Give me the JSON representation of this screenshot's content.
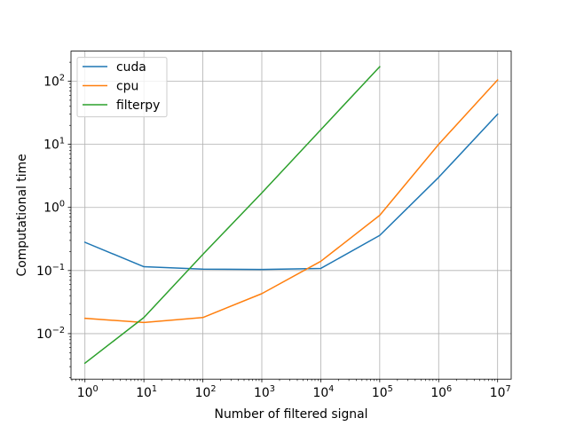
{
  "chart_data": {
    "type": "line",
    "xscale": "log",
    "yscale": "log",
    "xlabel": "Number of filtered signal",
    "ylabel": "Computational time",
    "x_ticks": [
      {
        "value": 1,
        "base": "10",
        "exp": "0"
      },
      {
        "value": 10,
        "base": "10",
        "exp": "1"
      },
      {
        "value": 100,
        "base": "10",
        "exp": "2"
      },
      {
        "value": 1000,
        "base": "10",
        "exp": "3"
      },
      {
        "value": 10000,
        "base": "10",
        "exp": "4"
      },
      {
        "value": 100000,
        "base": "10",
        "exp": "5"
      },
      {
        "value": 1000000,
        "base": "10",
        "exp": "6"
      },
      {
        "value": 10000000,
        "base": "10",
        "exp": "7"
      }
    ],
    "y_ticks": [
      {
        "value": 0.01,
        "base": "10",
        "exp": "−2"
      },
      {
        "value": 0.1,
        "base": "10",
        "exp": "−1"
      },
      {
        "value": 1,
        "base": "10",
        "exp": "0"
      },
      {
        "value": 10,
        "base": "10",
        "exp": "1"
      },
      {
        "value": 100,
        "base": "10",
        "exp": "2"
      }
    ],
    "xlim": [
      0.58,
      17000000
    ],
    "ylim": [
      0.0019,
      300
    ],
    "grid": true,
    "legend_position": "upper-left",
    "series": [
      {
        "name": "cuda",
        "color": "#1f77b4",
        "x": [
          1,
          10,
          100,
          1000,
          10000,
          100000,
          1000000,
          10000000
        ],
        "y": [
          0.28,
          0.115,
          0.105,
          0.104,
          0.108,
          0.36,
          3.0,
          30
        ]
      },
      {
        "name": "cpu",
        "color": "#ff7f0e",
        "x": [
          1,
          10,
          100,
          1000,
          10000,
          100000,
          1000000,
          10000000
        ],
        "y": [
          0.0175,
          0.015,
          0.018,
          0.043,
          0.14,
          0.75,
          10,
          105
        ]
      },
      {
        "name": "filterpy",
        "color": "#2ca02c",
        "x": [
          1,
          10,
          100,
          1000,
          10000,
          100000
        ],
        "y": [
          0.0034,
          0.018,
          0.18,
          1.7,
          17,
          170
        ]
      }
    ]
  }
}
